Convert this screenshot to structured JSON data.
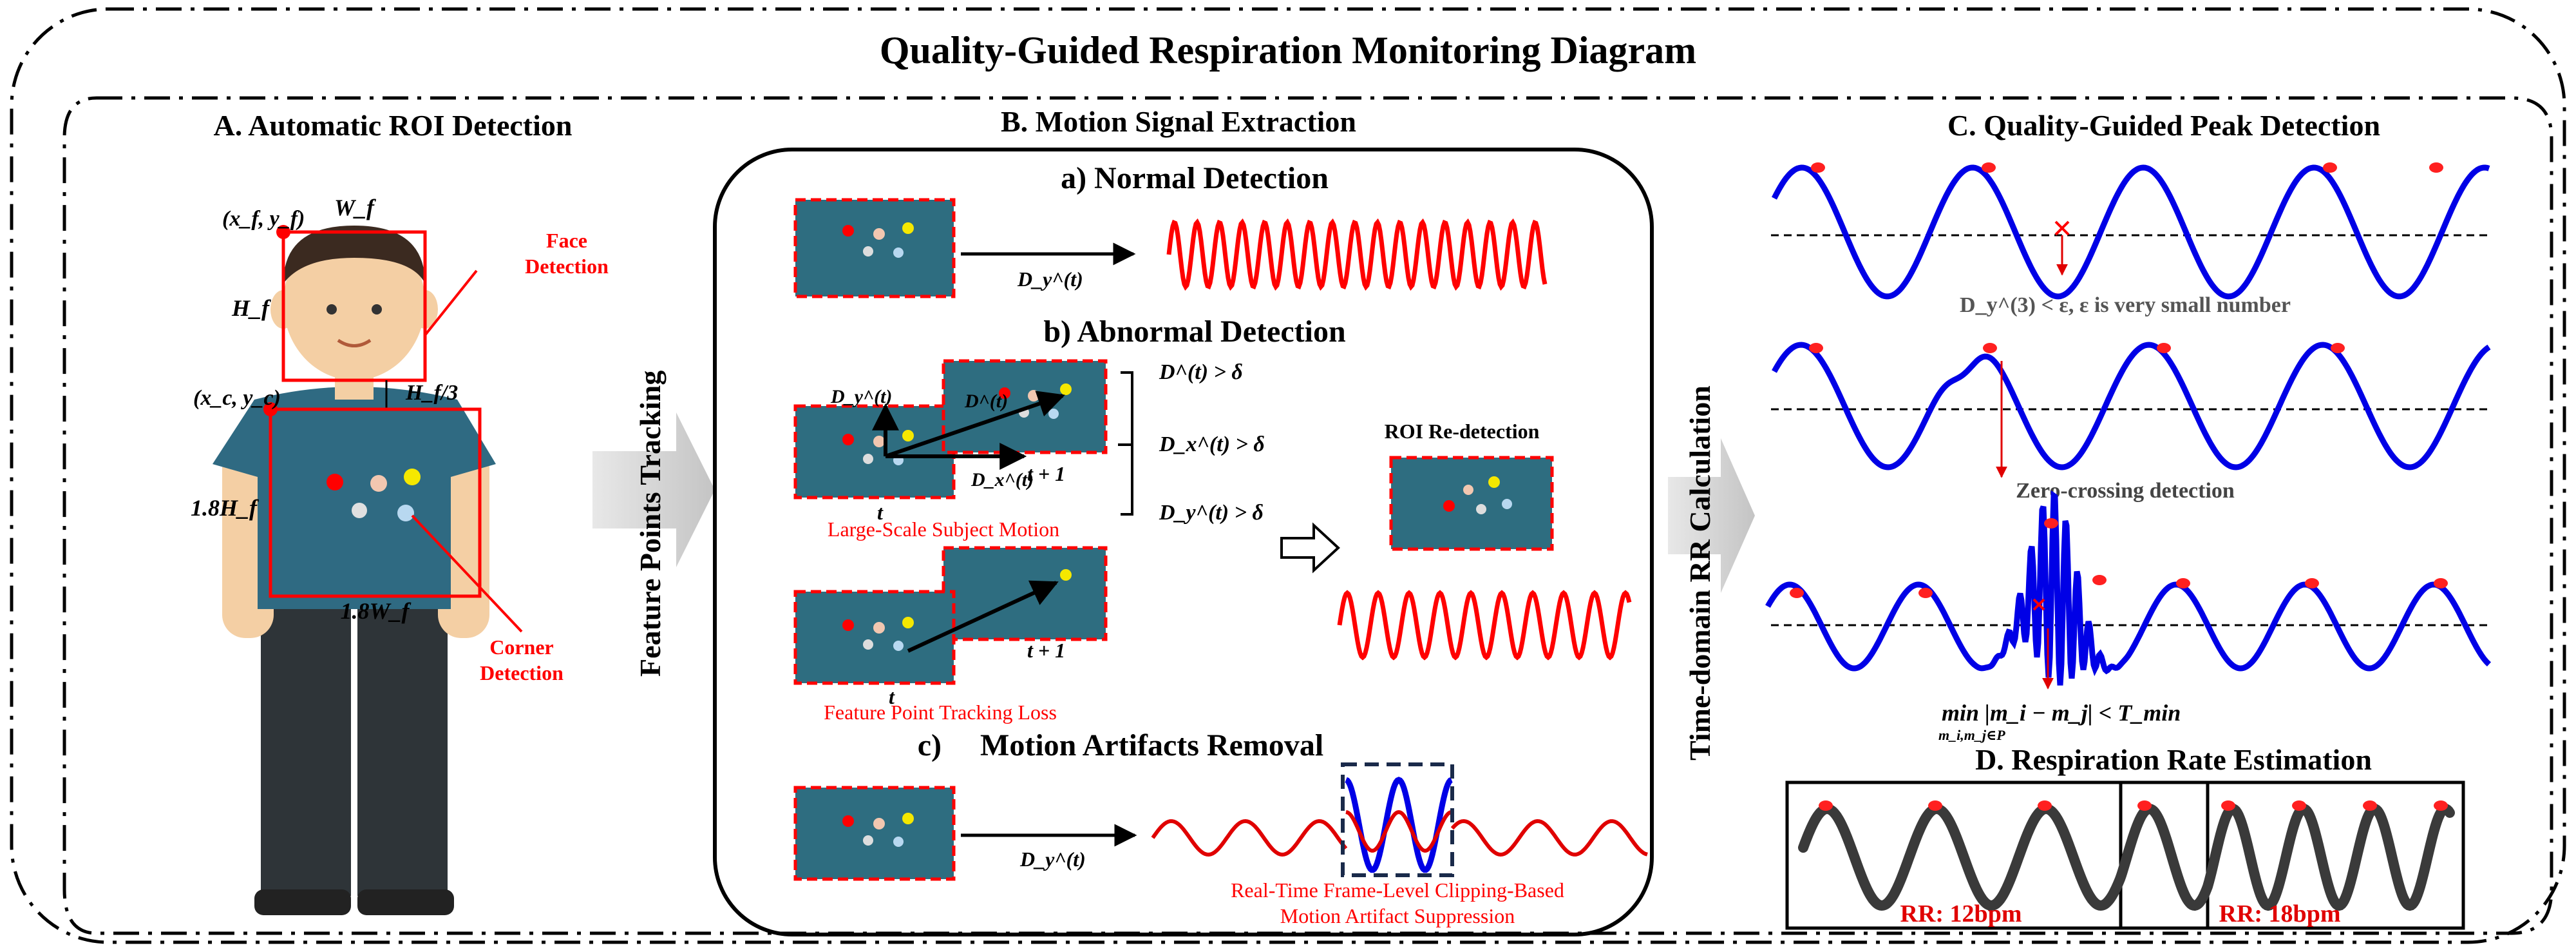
{
  "title": "Quality-Guided Respiration Monitoring Diagram",
  "colors": {
    "red": "#ff0000",
    "blue": "#0000e6",
    "dark": "#3a3a3a",
    "teal": "#2e6d80",
    "shirt": "#2f6a82",
    "pants": "#2e3438",
    "skin": "#f4cfa4",
    "hair": "#3b2a20",
    "gray_arrow": "#cccccc"
  },
  "panel_a": {
    "title": "A. Automatic ROI Detection",
    "face_xy": "(x_f, y_f)",
    "wf": "W_f",
    "hf": "H_f",
    "face_detection_1": "Face",
    "face_detection_2": "Detection",
    "chest_xy": "(x_c, y_c)",
    "hf3": "H_f/3",
    "h18": "1.8H_f",
    "w18": "1.8W_f",
    "corner_1": "Corner",
    "corner_2": "Detection"
  },
  "arrow_tracking": "Feature Points Tracking",
  "panel_b": {
    "title": "B. Motion Signal Extraction",
    "normal": "a)  Normal Detection",
    "dy": "D_y^(t)",
    "abnormal": "b)  Abnormal Detection",
    "dy_axis": "D_y^(t)",
    "d_vec": "D^(t)",
    "dx_axis": "D_x^(t)",
    "t_label": "t",
    "t1_label": "t + 1",
    "cond1": "D^(t) > δ",
    "cond2": "D_x^(t) > δ",
    "cond3": "D_y^(t) > δ",
    "large_motion": "Large-Scale Subject Motion",
    "t_label2": "t",
    "t1_label2": "t + 1",
    "tracking_loss": "Feature Point Tracking Loss",
    "roi_redetect": "ROI Re-detection",
    "removal": "c)     Motion Artifacts Removal",
    "dy3": "D_y^(t)",
    "clipping_1": "Real-Time Frame-Level Clipping-Based",
    "clipping_2": "Motion Artifact Suppression"
  },
  "arrow_rr": "Time-domain RR Calculation",
  "panel_c": {
    "title": "C. Quality-Guided Peak Detection",
    "eq1": "D_y^(3) < ε, ε is very small number",
    "zero_cross": "Zero-crossing detection",
    "eq3": "min |m_i − m_j| < T_min",
    "eq3_sub": "m_i,m_j∈P"
  },
  "panel_d": {
    "title": "D. Respiration Rate Estimation",
    "rr1": "RR: 12bpm",
    "rr2": "RR: 18bpm"
  }
}
